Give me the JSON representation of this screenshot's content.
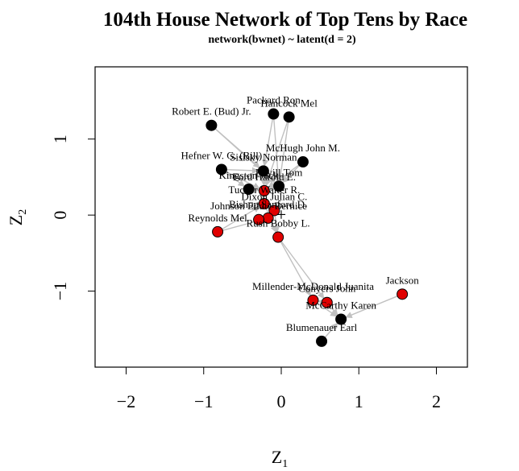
{
  "chart_data": {
    "type": "scatter",
    "title": "104th House Network of Top Tens by Race",
    "subtitle": "network(bwnet) ~ latent(d = 2)",
    "xlabel": "Z",
    "xlabel_sub": "1",
    "ylabel": "Z",
    "ylabel_sub": "2",
    "xlim": [
      -2.4,
      2.4
    ],
    "ylim": [
      -2.0,
      1.95
    ],
    "x_ticks": [
      -2,
      -1,
      0,
      1,
      2
    ],
    "x_tick_labels": [
      "−2",
      "−1",
      "0",
      "1",
      "2"
    ],
    "y_ticks": [
      -1,
      0,
      1
    ],
    "y_tick_labels": [
      "−1",
      "0",
      "1"
    ],
    "center_marker": "+",
    "center": [
      0.0,
      0.0
    ],
    "colors": {
      "group_a": "#000000",
      "group_b": "#e00000",
      "edge": "#c0c0c0"
    },
    "nodes": [
      {
        "id": "robert-e-bud-jr",
        "label": "Robert E. (Bud)  Jr.",
        "x": -0.9,
        "y": 1.18,
        "group": "group_a"
      },
      {
        "id": "packard-ron",
        "label": "Packard  Ron",
        "x": -0.1,
        "y": 1.33,
        "group": "group_a"
      },
      {
        "id": "hancock-mel",
        "label": "Hancock  Mel",
        "x": 0.1,
        "y": 1.29,
        "group": "group_a"
      },
      {
        "id": "mchugh-john-m",
        "label": "McHugh  John M.",
        "x": 0.28,
        "y": 0.7,
        "group": "group_a"
      },
      {
        "id": "hefner-w-g-bill",
        "label": "Hefner  W. G. (Bill)",
        "x": -0.77,
        "y": 0.6,
        "group": "group_a"
      },
      {
        "id": "sisisky-norman",
        "label": "Sisisky  Norman",
        "x": -0.23,
        "y": 0.58,
        "group": "group_a"
      },
      {
        "id": "bevill-tom",
        "label": "Bevill  Tom",
        "x": -0.03,
        "y": 0.38,
        "group": "group_a"
      },
      {
        "id": "kingston-jack",
        "label": "Kingston  Jack",
        "x": -0.42,
        "y": 0.34,
        "group": "group_a"
      },
      {
        "id": "ford-harold-e",
        "label": "Ford  Harold E.",
        "x": -0.22,
        "y": 0.32,
        "group": "group_b"
      },
      {
        "id": "tucker-walter-r",
        "label": "Tucker  Walter R.",
        "x": -0.22,
        "y": 0.15,
        "group": "group_b"
      },
      {
        "id": "dixon-julian-c",
        "label": "Dixon  Julian C.",
        "x": -0.09,
        "y": 0.06,
        "group": "group_b"
      },
      {
        "id": "bishop-sanford-d",
        "label": "Bishop  Sanford D.",
        "x": -0.17,
        "y": -0.04,
        "group": "group_b"
      },
      {
        "id": "johnson-eddie-bernice",
        "label": "Johnson  Eddie Bernice",
        "x": -0.29,
        "y": -0.06,
        "group": "group_b"
      },
      {
        "id": "reynolds-mel",
        "label": "Reynolds  Mel",
        "x": -0.82,
        "y": -0.22,
        "group": "group_b"
      },
      {
        "id": "rush-bobby-l",
        "label": "Rush  Bobby L.",
        "x": -0.04,
        "y": -0.29,
        "group": "group_b"
      },
      {
        "id": "millender-mcdonald-juanita",
        "label": "Millender-McDonald  Juanita",
        "x": 0.41,
        "y": -1.12,
        "group": "group_b"
      },
      {
        "id": "conyers-john",
        "label": "Conyers  John",
        "x": 0.59,
        "y": -1.15,
        "group": "group_b"
      },
      {
        "id": "jackson",
        "label": "Jackson",
        "x": 1.56,
        "y": -1.04,
        "group": "group_b"
      },
      {
        "id": "mccarthy-karen",
        "label": "McCarthy  Karen",
        "x": 0.77,
        "y": -1.37,
        "group": "group_a"
      },
      {
        "id": "blumenauer-earl",
        "label": "Blumenauer  Earl",
        "x": 0.52,
        "y": -1.66,
        "group": "group_a"
      }
    ],
    "edges": [
      [
        "robert-e-bud-jr",
        "sisisky-norman"
      ],
      [
        "robert-e-bud-jr",
        "bevill-tom"
      ],
      [
        "packard-ron",
        "sisisky-norman"
      ],
      [
        "packard-ron",
        "bevill-tom"
      ],
      [
        "hancock-mel",
        "bevill-tom"
      ],
      [
        "hancock-mel",
        "ford-harold-e"
      ],
      [
        "mchugh-john-m",
        "bevill-tom"
      ],
      [
        "mchugh-john-m",
        "ford-harold-e"
      ],
      [
        "hefner-w-g-bill",
        "sisisky-norman"
      ],
      [
        "hefner-w-g-bill",
        "ford-harold-e"
      ],
      [
        "hefner-w-g-bill",
        "kingston-jack"
      ],
      [
        "sisisky-norman",
        "ford-harold-e"
      ],
      [
        "sisisky-norman",
        "bevill-tom"
      ],
      [
        "kingston-jack",
        "ford-harold-e"
      ],
      [
        "bevill-tom",
        "ford-harold-e"
      ],
      [
        "ford-harold-e",
        "tucker-walter-r"
      ],
      [
        "tucker-walter-r",
        "dixon-julian-c"
      ],
      [
        "dixon-julian-c",
        "bishop-sanford-d"
      ],
      [
        "bishop-sanford-d",
        "johnson-eddie-bernice"
      ],
      [
        "reynolds-mel",
        "tucker-walter-r"
      ],
      [
        "reynolds-mel",
        "bishop-sanford-d"
      ],
      [
        "tucker-walter-r",
        "rush-bobby-l"
      ],
      [
        "dixon-julian-c",
        "rush-bobby-l"
      ],
      [
        "rush-bobby-l",
        "millender-mcdonald-juanita"
      ],
      [
        "rush-bobby-l",
        "conyers-john"
      ],
      [
        "jackson",
        "mccarthy-karen"
      ],
      [
        "conyers-john",
        "mccarthy-karen"
      ],
      [
        "millender-mcdonald-juanita",
        "mccarthy-karen"
      ],
      [
        "blumenauer-earl",
        "mccarthy-karen"
      ],
      [
        "conyers-john",
        "millender-mcdonald-juanita"
      ]
    ]
  }
}
